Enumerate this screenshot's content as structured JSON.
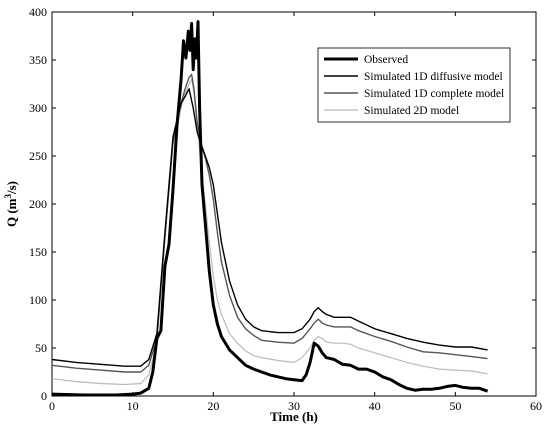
{
  "chart_data": {
    "type": "line",
    "title": "",
    "xlabel": "Time (h)",
    "ylabel_main": "Q (m",
    "ylabel_sup": "3",
    "ylabel_tail": "/s)",
    "xlim": [
      0,
      60
    ],
    "ylim": [
      0,
      400
    ],
    "xticks": [
      "0",
      "10",
      "20",
      "30",
      "40",
      "50",
      "60"
    ],
    "yticks": [
      "0",
      "50",
      "100",
      "150",
      "200",
      "250",
      "300",
      "350",
      "400"
    ],
    "grid": false,
    "legend_position": "top-right",
    "series": [
      {
        "name": "Observed",
        "color": "#000000",
        "x": [
          0,
          4,
          8,
          10,
          11,
          12,
          12.5,
          13,
          13.5,
          14,
          14.5,
          15,
          15.5,
          16,
          16.3,
          16.6,
          16.9,
          17.1,
          17.3,
          17.5,
          17.7,
          17.9,
          18.1,
          18.3,
          18.6,
          19,
          19.5,
          20,
          20.5,
          21,
          22,
          23,
          24,
          25,
          26,
          27,
          28,
          29,
          30,
          31,
          31.5,
          32,
          32.5,
          33,
          33.5,
          34,
          35,
          36,
          37,
          38,
          39,
          40,
          41,
          42,
          43,
          44,
          45,
          46,
          47,
          48,
          49,
          50,
          51,
          52,
          53,
          54
        ],
        "y": [
          2,
          1,
          1,
          2,
          3,
          8,
          25,
          60,
          68,
          135,
          158,
          215,
          282,
          330,
          370,
          352,
          380,
          360,
          388,
          340,
          372,
          352,
          390,
          300,
          220,
          180,
          130,
          95,
          75,
          62,
          48,
          40,
          32,
          28,
          25,
          22,
          20,
          18,
          17,
          16,
          22,
          35,
          55,
          52,
          45,
          40,
          38,
          33,
          32,
          28,
          28,
          25,
          20,
          17,
          12,
          8,
          6,
          7,
          7,
          8,
          10,
          11,
          9,
          8,
          8,
          5
        ]
      },
      {
        "name": "Simulated 1D diffusive model",
        "color": "#000000",
        "x": [
          0,
          3,
          6,
          9,
          11,
          12,
          13,
          14,
          15,
          16,
          16.5,
          17,
          17.5,
          18,
          18.5,
          19,
          19.5,
          20,
          20.5,
          21,
          22,
          23,
          24,
          25,
          26,
          28,
          30,
          31,
          32,
          32.5,
          33,
          33.5,
          34,
          35,
          36,
          37,
          38,
          40,
          42,
          44,
          46,
          48,
          50,
          52,
          54
        ],
        "y": [
          38,
          35,
          33,
          31,
          31,
          38,
          65,
          170,
          270,
          305,
          312,
          320,
          300,
          275,
          262,
          250,
          238,
          220,
          190,
          160,
          120,
          95,
          80,
          72,
          68,
          66,
          66,
          70,
          80,
          88,
          92,
          88,
          85,
          82,
          82,
          82,
          78,
          70,
          65,
          60,
          56,
          53,
          51,
          51,
          48
        ]
      },
      {
        "name": "Simulated 1D complete model",
        "color": "#555555",
        "x": [
          0,
          3,
          6,
          9,
          11,
          12,
          13,
          14,
          15,
          16,
          16.5,
          17,
          17.3,
          17.6,
          18,
          18.5,
          19,
          19.5,
          20,
          20.5,
          21,
          22,
          23,
          24,
          25,
          26,
          28,
          30,
          31,
          32,
          32.5,
          33,
          33.5,
          34,
          35,
          36,
          37,
          38,
          40,
          42,
          44,
          46,
          48,
          50,
          52,
          54
        ],
        "y": [
          32,
          29,
          27,
          25,
          25,
          32,
          60,
          165,
          265,
          305,
          320,
          332,
          335,
          320,
          285,
          262,
          248,
          230,
          205,
          170,
          140,
          105,
          82,
          70,
          63,
          58,
          56,
          55,
          60,
          70,
          76,
          80,
          76,
          74,
          72,
          72,
          72,
          68,
          62,
          57,
          51,
          46,
          45,
          43,
          41,
          39
        ]
      },
      {
        "name": "Simulated 2D model",
        "color": "#bbbbbb",
        "x": [
          0,
          3,
          6,
          9,
          11,
          12,
          13,
          14,
          15,
          16,
          16.5,
          17,
          17.3,
          17.6,
          18,
          18.5,
          19,
          19.5,
          20,
          20.5,
          21,
          22,
          23,
          24,
          25,
          26,
          28,
          30,
          31,
          32,
          32.5,
          33,
          33.5,
          34,
          35,
          36,
          37,
          38,
          40,
          42,
          44,
          46,
          48,
          50,
          52,
          54
        ],
        "y": [
          18,
          15,
          13,
          12,
          13,
          22,
          55,
          165,
          262,
          300,
          315,
          325,
          330,
          315,
          280,
          240,
          200,
          160,
          125,
          100,
          85,
          65,
          55,
          47,
          42,
          40,
          37,
          35,
          40,
          50,
          58,
          62,
          60,
          56,
          55,
          55,
          54,
          50,
          45,
          40,
          35,
          31,
          28,
          27,
          26,
          23
        ]
      }
    ]
  }
}
